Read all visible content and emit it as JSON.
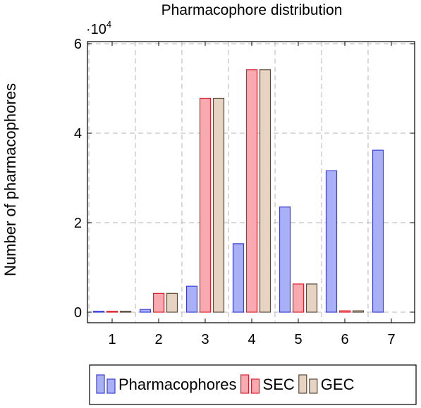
{
  "chart_data": {
    "type": "bar",
    "title": "Pharmacophore distribution",
    "xlabel": "",
    "ylabel": "Number of pharmacophores",
    "scale_label_base": "·10",
    "scale_label_exp": "4",
    "categories": [
      "1",
      "2",
      "3",
      "4",
      "5",
      "6",
      "7"
    ],
    "ylim": [
      0,
      6
    ],
    "yticks": [
      0,
      2,
      4,
      6
    ],
    "grid": true,
    "legend_position": "bottom",
    "series": [
      {
        "name": "Pharmacophores",
        "fill": "#aab0f5",
        "stroke": "#3a3fd6",
        "values": [
          0.02,
          0.06,
          0.58,
          1.53,
          2.35,
          3.16,
          3.62
        ]
      },
      {
        "name": "SEC",
        "fill": "#f9aab0",
        "stroke": "#e0202a",
        "values": [
          0.02,
          0.42,
          4.78,
          5.42,
          0.63,
          0.03,
          0
        ]
      },
      {
        "name": "GEC",
        "fill": "#e6d3c1",
        "stroke": "#5a4a3a",
        "values": [
          0.02,
          0.42,
          4.78,
          5.42,
          0.63,
          0.03,
          0
        ]
      }
    ]
  }
}
